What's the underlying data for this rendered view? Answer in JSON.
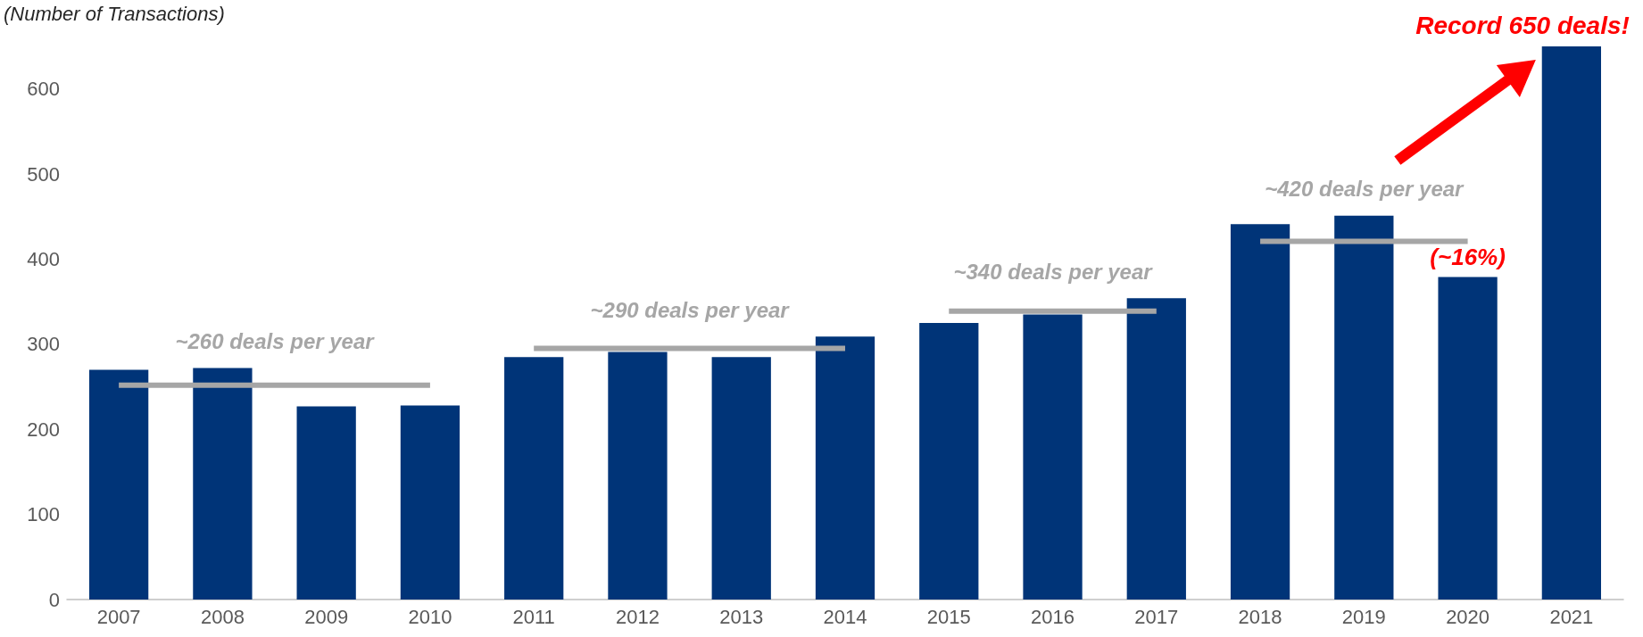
{
  "chart_data": {
    "type": "bar",
    "ylabel": "(Number of Transactions)",
    "categories": [
      "2007",
      "2008",
      "2009",
      "2010",
      "2011",
      "2012",
      "2013",
      "2014",
      "2015",
      "2016",
      "2017",
      "2018",
      "2019",
      "2020",
      "2021"
    ],
    "series": [
      {
        "color": "#003478",
        "values": [
          270,
          272,
          227,
          228,
          285,
          291,
          285,
          309,
          325,
          335,
          354,
          441,
          451,
          379,
          650
        ]
      },
      {
        "type": "line",
        "color": "#a6a6a6",
        "values": [
          252,
          252,
          252,
          252,
          null,
          null,
          null,
          null,
          null,
          null,
          null,
          null,
          null,
          null,
          null
        ]
      },
      {
        "type": "line",
        "color": "#a6a6a6",
        "values": [
          null,
          null,
          null,
          null,
          295,
          295,
          295,
          295,
          null,
          null,
          null,
          null,
          null,
          null,
          null
        ]
      },
      {
        "type": "line",
        "color": "#a6a6a6",
        "values": [
          null,
          null,
          null,
          null,
          null,
          null,
          null,
          null,
          339,
          339,
          339,
          null,
          null,
          null,
          null
        ]
      },
      {
        "type": "line",
        "color": "#a6a6a6",
        "values": [
          null,
          null,
          null,
          null,
          null,
          null,
          null,
          null,
          null,
          null,
          null,
          421,
          421,
          421,
          null
        ]
      }
    ],
    "ylim": [
      0,
      650
    ],
    "yticks": [
      0,
      100,
      200,
      300,
      400,
      500,
      600
    ],
    "grid": false,
    "marker": "none",
    "line_style": "solid",
    "annotations": [
      "~260 deals per year",
      "~290 deals per year",
      "~340 deals per year",
      "~420 deals per year",
      {
        "text": "(~16%)",
        "x": "2020",
        "y": 379
      },
      {
        "text": "Record 650 deals!",
        "x": "2021",
        "y": 650
      }
    ]
  }
}
